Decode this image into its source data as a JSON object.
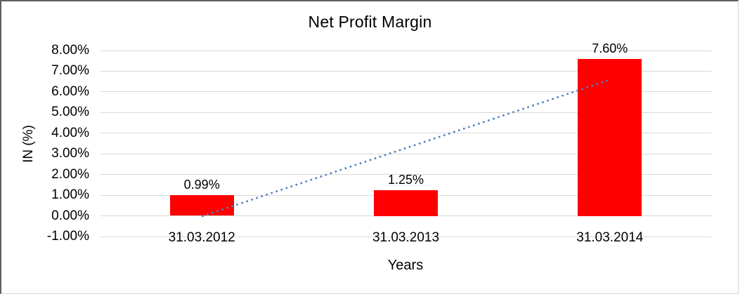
{
  "chart_data": {
    "type": "bar",
    "title": "Net Profit Margin",
    "xlabel": "Years",
    "ylabel": "IN (%)",
    "categories": [
      "31.03.2012",
      "31.03.2013",
      "31.03.2014"
    ],
    "values": [
      0.99,
      1.25,
      7.6
    ],
    "data_labels": [
      "0.99%",
      "1.25%",
      "7.60%"
    ],
    "ylim": [
      -1,
      8
    ],
    "yticks": [
      8,
      7,
      6,
      5,
      4,
      3,
      2,
      1,
      0,
      -1
    ],
    "ytick_labels": [
      "8.00%",
      "7.00%",
      "6.00%",
      "5.00%",
      "4.00%",
      "3.00%",
      "2.00%",
      "1.00%",
      "0.00%",
      "-1.00%"
    ],
    "grid": true,
    "legend": "none",
    "trendline": {
      "type": "linear",
      "style": "dotted"
    },
    "colors": {
      "bar": "#FF0000",
      "trendline": "#4F81BD",
      "gridline": "#D9D9D9",
      "text": "#000000",
      "background": "#FFFFFF"
    }
  }
}
